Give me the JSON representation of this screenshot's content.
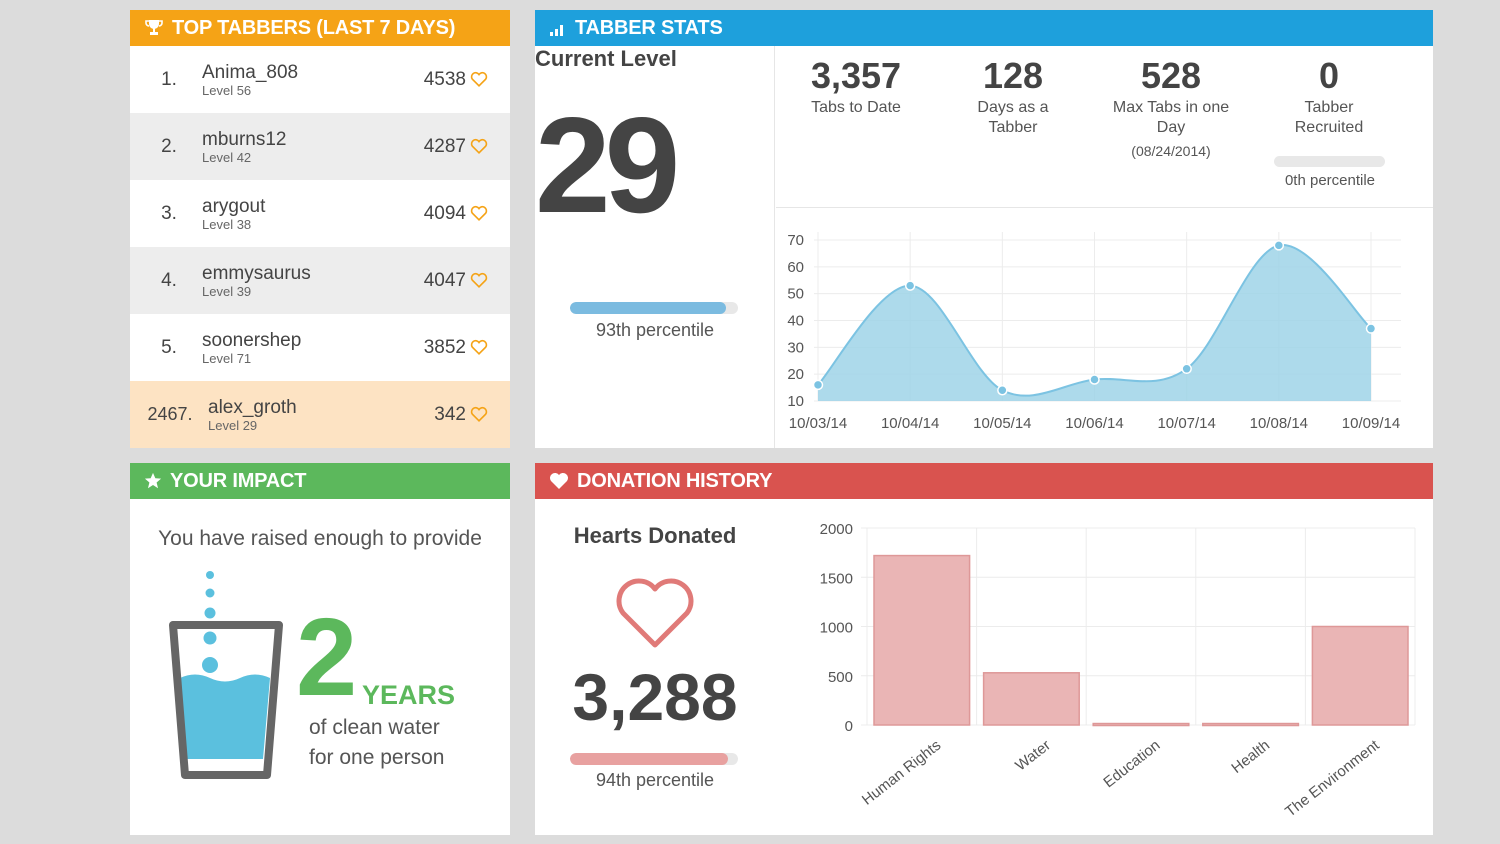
{
  "top_tabbers": {
    "title": "TOP TABBERS (LAST 7 DAYS)",
    "rows": [
      {
        "rank": "1.",
        "name": "Anima_808",
        "level": "Level 56",
        "score": "4538"
      },
      {
        "rank": "2.",
        "name": "mburns12",
        "level": "Level 42",
        "score": "4287"
      },
      {
        "rank": "3.",
        "name": "arygout",
        "level": "Level 38",
        "score": "4094"
      },
      {
        "rank": "4.",
        "name": "emmysaurus",
        "level": "Level 39",
        "score": "4047"
      },
      {
        "rank": "5.",
        "name": "soonershep",
        "level": "Level 71",
        "score": "3852"
      },
      {
        "rank": "2467.",
        "name": "alex_groth",
        "level": "Level 29",
        "score": "342"
      }
    ]
  },
  "tabber_stats": {
    "title": "TABBER STATS",
    "current_level_label": "Current Level",
    "current_level": "29",
    "level_percentile_label": "93th percentile",
    "level_percentile_value": 0.93,
    "tabs_to_date": "3,357",
    "tabs_to_date_label": "Tabs to Date",
    "days_as_tabber": "128",
    "days_as_tabber_label": "Days as a Tabber",
    "max_tabs": "528",
    "max_tabs_label": "Max Tabs in one Day",
    "max_tabs_date": "(08/24/2014)",
    "recruited": "0",
    "recruited_label": "Tabber Recruited",
    "recruited_percentile_label": "0th percentile",
    "recruited_percentile_value": 0
  },
  "impact": {
    "title": "YOUR IMPACT",
    "lead": "You have raised enough to provide",
    "amount": "2",
    "unit": "YEARS",
    "line1": "of clean water",
    "line2": "for one person"
  },
  "donations": {
    "title": "DONATION HISTORY",
    "hearts_label": "Hearts Donated",
    "hearts_value": "3,288",
    "percentile_label": "94th percentile",
    "percentile_value": 0.94
  },
  "chart_data": [
    {
      "type": "area",
      "title": "",
      "categories": [
        "10/03/14",
        "10/04/14",
        "10/05/14",
        "10/06/14",
        "10/07/14",
        "10/08/14",
        "10/09/14"
      ],
      "values": [
        16,
        53,
        14,
        18,
        22,
        68,
        37
      ],
      "ylim": [
        10,
        70
      ],
      "yticks": [
        10,
        20,
        30,
        40,
        50,
        60,
        70
      ],
      "color": "#9fd3e8"
    },
    {
      "type": "bar",
      "title": "",
      "categories": [
        "Human Rights",
        "Water",
        "Education",
        "Health",
        "The Environment"
      ],
      "values": [
        1720,
        530,
        15,
        15,
        1000
      ],
      "ylim": [
        0,
        2000
      ],
      "yticks": [
        0,
        500,
        1000,
        1500,
        2000
      ],
      "color": "#eab5b5"
    }
  ],
  "colors": {
    "orange": "#f5a316",
    "blue": "#1ea0dc",
    "green": "#5cb85c",
    "red": "#d9534f"
  }
}
